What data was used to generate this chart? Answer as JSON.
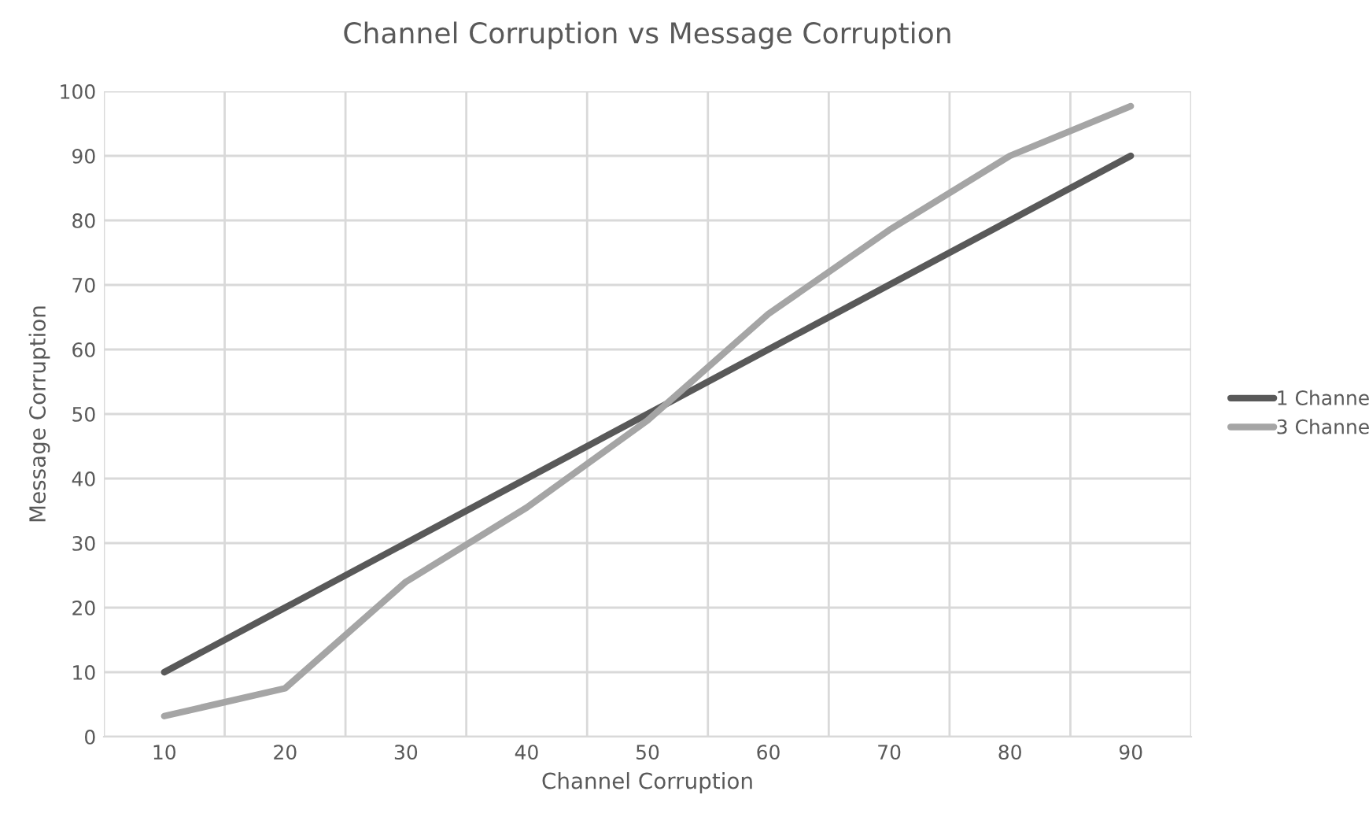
{
  "chart_data": {
    "type": "line",
    "title": "Channel Corruption vs Message Corruption",
    "xlabel": "Channel Corruption",
    "ylabel": "Message Corruption",
    "categories": [
      "10",
      "20",
      "30",
      "40",
      "50",
      "60",
      "70",
      "80",
      "90"
    ],
    "series": [
      {
        "name": "1 Channe",
        "color": "#595959",
        "values": [
          10,
          20,
          30,
          40,
          50,
          60,
          70,
          80,
          90
        ]
      },
      {
        "name": "3 Channe",
        "color": "#a5a5a5",
        "values": [
          3.2,
          7.5,
          24,
          35.5,
          49,
          65.5,
          78.5,
          90,
          97.7
        ]
      }
    ],
    "ylim": [
      0,
      100
    ],
    "yticks": [
      0,
      10,
      20,
      30,
      40,
      50,
      60,
      70,
      80,
      90,
      100
    ],
    "grid": true,
    "legend": "right",
    "marker": "none",
    "line_style": "solid"
  }
}
